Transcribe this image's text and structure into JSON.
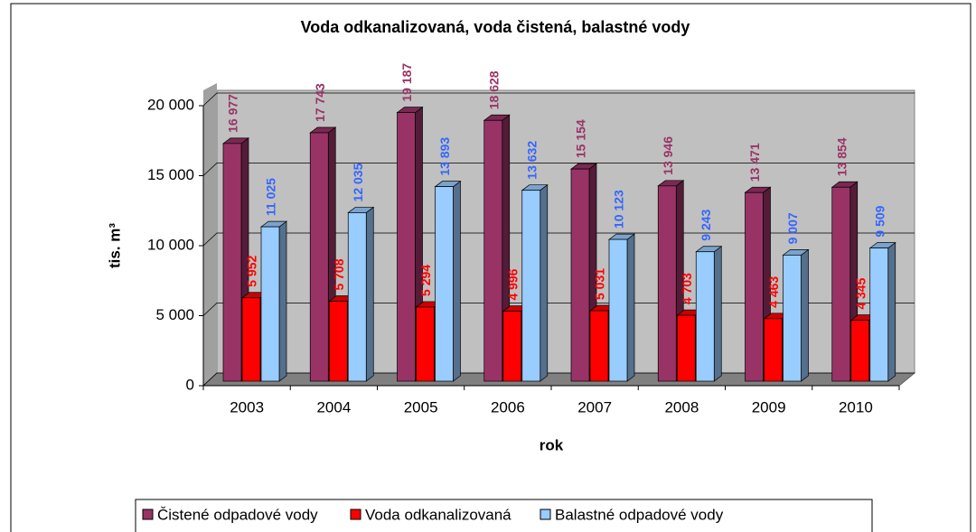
{
  "chart_data": {
    "type": "bar3d",
    "title": "Voda odkanalizovaná, voda čistená, balastné vody",
    "x_label": "rok",
    "y_label": "tis. m³",
    "categories": [
      "2003",
      "2004",
      "2005",
      "2006",
      "2007",
      "2008",
      "2009",
      "2010"
    ],
    "series": [
      {
        "name": "Čistené odpadové vody",
        "color": "#993366",
        "values": [
          16977,
          17743,
          19187,
          18628,
          15154,
          13946,
          13471,
          13854
        ],
        "value_labels": [
          "16 977",
          "17 743",
          "19 187",
          "18 628",
          "15 154",
          "13 946",
          "13 471",
          "13 854"
        ]
      },
      {
        "name": "Voda odkanalizovaná",
        "color": "#ff0000",
        "values": [
          5952,
          5708,
          5294,
          4996,
          5031,
          4703,
          4463,
          4345
        ],
        "value_labels": [
          "5 952",
          "5 708",
          "5 294",
          "4 996",
          "5 031",
          "4 703",
          "4 463",
          "4 345"
        ]
      },
      {
        "name": "Balastné odpadové vody",
        "color": "#99ccff",
        "values": [
          11025,
          12035,
          13893,
          13632,
          10123,
          9243,
          9007,
          9509
        ],
        "value_labels": [
          "11 025",
          "12 035",
          "13 893",
          "13 632",
          "10 123",
          "9 243",
          "9 007",
          "9 509"
        ]
      }
    ],
    "ylim": [
      0,
      20000
    ],
    "yticks": [
      0,
      {
        "value": 5000,
        "label": "5 000"
      },
      {
        "value": 10000,
        "label": "10 000"
      },
      {
        "value": 15000,
        "label": "15 000"
      },
      {
        "value": 20000,
        "label": "20 000"
      }
    ],
    "grid": true
  }
}
